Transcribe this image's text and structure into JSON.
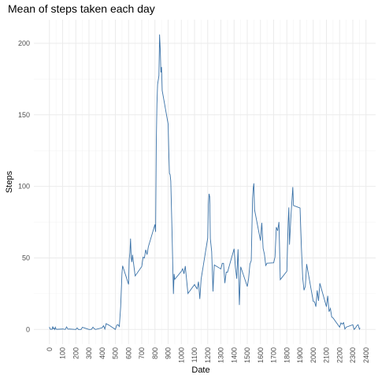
{
  "chart_data": {
    "type": "line",
    "title": "Mean of steps taken each day",
    "xlabel": "Date",
    "ylabel": "Steps",
    "x": [
      0,
      5,
      10,
      15,
      20,
      25,
      30,
      35,
      40,
      45,
      50,
      55,
      100,
      110,
      120,
      130,
      140,
      150,
      200,
      210,
      220,
      230,
      240,
      250,
      300,
      310,
      320,
      330,
      340,
      350,
      400,
      410,
      420,
      430,
      440,
      450,
      500,
      510,
      520,
      530,
      540,
      550,
      555,
      600,
      605,
      610,
      615,
      620,
      625,
      630,
      640,
      650,
      700,
      710,
      720,
      730,
      740,
      750,
      800,
      805,
      810,
      815,
      820,
      830,
      835,
      840,
      845,
      850,
      855,
      900,
      905,
      910,
      915,
      920,
      930,
      935,
      940,
      945,
      950,
      1000,
      1010,
      1020,
      1030,
      1040,
      1050,
      1100,
      1110,
      1120,
      1130,
      1140,
      1150,
      1200,
      1205,
      1210,
      1215,
      1220,
      1230,
      1240,
      1245,
      1250,
      1300,
      1310,
      1320,
      1330,
      1340,
      1350,
      1400,
      1410,
      1420,
      1430,
      1440,
      1450,
      1500,
      1510,
      1520,
      1530,
      1540,
      1545,
      1550,
      1555,
      1600,
      1610,
      1620,
      1630,
      1640,
      1650,
      1700,
      1710,
      1720,
      1730,
      1740,
      1750,
      1800,
      1805,
      1810,
      1815,
      1820,
      1830,
      1845,
      1850,
      1900,
      1910,
      1920,
      1930,
      1940,
      1950,
      2000,
      2010,
      2020,
      2030,
      2040,
      2050,
      2100,
      2110,
      2120,
      2130,
      2140,
      2150,
      2200,
      2210,
      2220,
      2230,
      2240,
      2250,
      2300,
      2310,
      2320,
      2330,
      2340,
      2350,
      2355
    ],
    "series": [
      {
        "name": "Steps",
        "color": "#3a72a8",
        "values": [
          1.7,
          0.3,
          0.1,
          0.2,
          0.1,
          2.1,
          0.5,
          0.9,
          0,
          1.5,
          0.3,
          0.1,
          0.3,
          0.2,
          0,
          1.8,
          0.2,
          0.3,
          0,
          1.1,
          0,
          0,
          0,
          1.5,
          0,
          0,
          0.2,
          1.6,
          0.5,
          0,
          1.2,
          2.6,
          0.3,
          4.1,
          3.5,
          3.1,
          0,
          3.0,
          3.3,
          2.1,
          16,
          39.5,
          44.5,
          31.5,
          49.3,
          53.8,
          63.5,
          50,
          47.1,
          52.2,
          44.5,
          37.4,
          44,
          50.5,
          49.9,
          55.7,
          52.3,
          57.8,
          73.4,
          68.2,
          129.4,
          157.5,
          171.2,
          177.3,
          206.2,
          195.9,
          179.6,
          183.4,
          167.0,
          143.5,
          124.0,
          109.1,
          108.1,
          103.7,
          66.2,
          45.2,
          24.8,
          38.8,
          35,
          40.6,
          42.4,
          38.9,
          44.3,
          34.5,
          25.1,
          31.4,
          29.7,
          28.4,
          33.4,
          21.3,
          35.1,
          63.9,
          87.6,
          94.8,
          92.8,
          63.4,
          54.5,
          26.5,
          37.7,
          45.1,
          42.3,
          46.2,
          46.2,
          32.4,
          40.0,
          40.0,
          56.4,
          43.6,
          35.5,
          56.0,
          17.1,
          43.8,
          30.0,
          35.5,
          45.7,
          48.1,
          91.6,
          98.7,
          102.1,
          83.8,
          62.1,
          74.5,
          56.7,
          52.5,
          44.7,
          46.3,
          46.6,
          50.7,
          71.5,
          68.9,
          75.1,
          34.8,
          40.7,
          58.0,
          74.7,
          85.3,
          59.3,
          77.7,
          99.5,
          86.6,
          84.9,
          58.0,
          36.1,
          27.4,
          30.2,
          45.7,
          19.6,
          19.3,
          15.9,
          27.3,
          20.0,
          32.3,
          15.9,
          23.5,
          12.4,
          14.7,
          8.7,
          8.1,
          1.6,
          4.6,
          3.7,
          4.8,
          0.3,
          1.6,
          3.3,
          0,
          1.0,
          2.6,
          3.3,
          0.2,
          1.1
        ]
      }
    ],
    "xlim": [
      -118,
      2473
    ],
    "ylim": [
      -10.3,
      216.5
    ],
    "xticks": [
      0,
      100,
      200,
      300,
      400,
      500,
      600,
      700,
      800,
      900,
      1000,
      1100,
      1200,
      1300,
      1400,
      1500,
      1600,
      1700,
      1800,
      1900,
      2000,
      2100,
      2200,
      2300,
      2400
    ],
    "yticks": [
      0,
      50,
      100,
      150,
      200
    ],
    "grid": true
  }
}
